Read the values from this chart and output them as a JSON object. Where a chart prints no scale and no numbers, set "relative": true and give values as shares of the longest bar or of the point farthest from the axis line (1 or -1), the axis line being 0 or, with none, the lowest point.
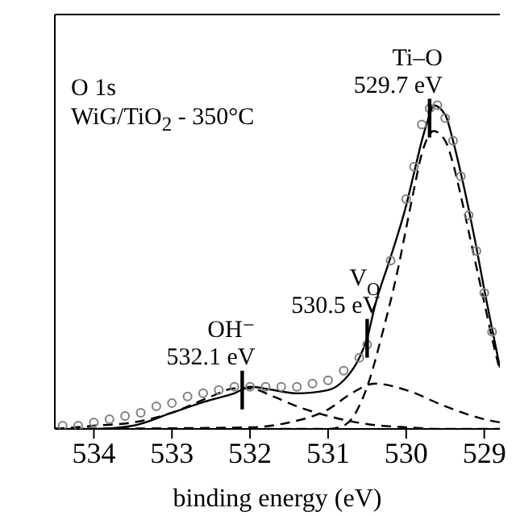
{
  "chart_data": {
    "type": "line",
    "relative": true,
    "xlabel": "binding energy (eV)",
    "xlim": [
      534.5,
      528.8
    ],
    "xticks": [
      534,
      533,
      532,
      531,
      530,
      529
    ],
    "grid": false,
    "annotations": [
      "O 1s",
      "WiG/TiO$_{2}$ - 350°C",
      {
        "text": "Ti–O\n529.7 eV",
        "x": 529.7,
        "y": 0.96
      },
      {
        "text": "V$_{O}$\n530.5 eV",
        "x": 530.5,
        "y": 0.28
      },
      {
        "text": "OH⁻\n532.1 eV",
        "x": 532.1,
        "y": 0.12
      }
    ],
    "series": [
      {
        "type": "scatter",
        "color": "#808080",
        "marker": "circle",
        "x": [
          534.4,
          534.2,
          534,
          533.8,
          533.6,
          533.4,
          533.2,
          533,
          532.8,
          532.6,
          532.4,
          532.2,
          532,
          531.8,
          531.6,
          531.4,
          531.2,
          531,
          530.8,
          530.6,
          530.5,
          530.2,
          530,
          529.9,
          529.8,
          529.7,
          529.6,
          529.5,
          529.4,
          529.3,
          529.2,
          529.1,
          529,
          528.9
        ],
        "values": [
          0.01,
          0.01,
          0.02,
          0.03,
          0.04,
          0.05,
          0.07,
          0.08,
          0.1,
          0.11,
          0.12,
          0.13,
          0.13,
          0.13,
          0.13,
          0.13,
          0.14,
          0.15,
          0.18,
          0.22,
          0.26,
          0.52,
          0.71,
          0.81,
          0.94,
          0.99,
          1.0,
          0.96,
          0.89,
          0.78,
          0.66,
          0.55,
          0.42,
          0.3
        ]
      },
      {
        "color": "#000000",
        "marker": "none",
        "line_style": "solid",
        "x": [
          534.5,
          534,
          533.5,
          533,
          532.5,
          532.2,
          532,
          531.7,
          531.4,
          531,
          530.8,
          530.6,
          530.5,
          530.4,
          530.2,
          530,
          529.9,
          529.8,
          529.7,
          529.65,
          529.5,
          529.4,
          529.3,
          529.2,
          529.1,
          529,
          528.9,
          528.8
        ],
        "values": [
          0,
          0,
          0.01,
          0.05,
          0.09,
          0.11,
          0.13,
          0.12,
          0.11,
          0.12,
          0.15,
          0.22,
          0.28,
          0.38,
          0.53,
          0.69,
          0.79,
          0.89,
          0.97,
          1.0,
          0.97,
          0.89,
          0.79,
          0.68,
          0.56,
          0.43,
          0.31,
          0.19
        ]
      },
      {
        "color": "#000000",
        "marker": "none",
        "line_style": "dashed",
        "x": [
          534.5,
          534,
          533.5,
          533,
          532.5,
          532.2,
          532,
          531.7,
          531.4,
          531,
          530.5,
          530,
          529.5,
          528.8
        ],
        "values": [
          0,
          0.01,
          0.02,
          0.05,
          0.1,
          0.125,
          0.125,
          0.1,
          0.07,
          0.04,
          0.015,
          0.005,
          0,
          0
        ]
      },
      {
        "color": "#000000",
        "marker": "none",
        "line_style": "dashed",
        "x": [
          534.5,
          532,
          531.5,
          531,
          530.7,
          530.4,
          530,
          529.5,
          529,
          528.8
        ],
        "values": [
          0,
          0.005,
          0.02,
          0.06,
          0.11,
          0.14,
          0.12,
          0.07,
          0.03,
          0.02
        ]
      },
      {
        "color": "#000000",
        "marker": "none",
        "line_style": "dashed",
        "x": [
          534.5,
          531,
          530.8,
          530.5,
          530.3,
          530.1,
          530,
          529.9,
          529.8,
          529.7,
          529.65,
          529.5,
          529.4,
          529.3,
          529.2,
          529.1,
          529,
          528.9,
          528.8
        ],
        "values": [
          0,
          0,
          0.01,
          0.13,
          0.3,
          0.5,
          0.62,
          0.74,
          0.85,
          0.91,
          0.92,
          0.89,
          0.82,
          0.72,
          0.61,
          0.5,
          0.39,
          0.28,
          0.18
        ]
      }
    ]
  }
}
